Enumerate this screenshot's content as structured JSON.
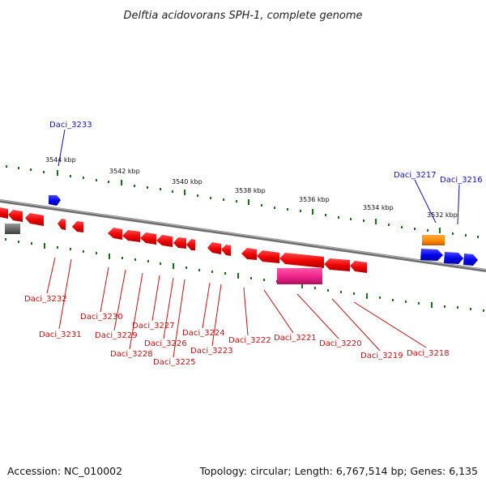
{
  "title": "Delftia acidovorans SPH-1, complete genome",
  "footer": {
    "accession": "Accession: NC_010002",
    "topology": "Topology: circular; Length: 6,767,514 bp; Genes: 6,135"
  },
  "colors": {
    "forward_gene": "#0000ee",
    "reverse_gene": "#ee0000",
    "orange_feature": "#ff8800",
    "magenta_feature": "#ee2288",
    "gray_feature": "#666666",
    "backbone": "#888888",
    "tick": "#117711",
    "blue_label": "#1010cc",
    "red_label": "#cc1010"
  },
  "scale_labels": [
    "3544 kbp",
    "3542 kbp",
    "3540 kbp",
    "3538 kbp",
    "3536 kbp",
    "3534 kbp",
    "3532 kbp"
  ],
  "gene_labels_forward": [
    "Daci_3233",
    "Daci_3217",
    "Daci_3216"
  ],
  "gene_labels_reverse": [
    "Daci_3232",
    "Daci_3231",
    "Daci_3230",
    "Daci_3229",
    "Daci_3228",
    "Daci_3227",
    "Daci_3226",
    "Daci_3225",
    "Daci_3224",
    "Daci_3223",
    "Daci_3222",
    "Daci_3221",
    "Daci_3220",
    "Daci_3219",
    "Daci_3218"
  ]
}
